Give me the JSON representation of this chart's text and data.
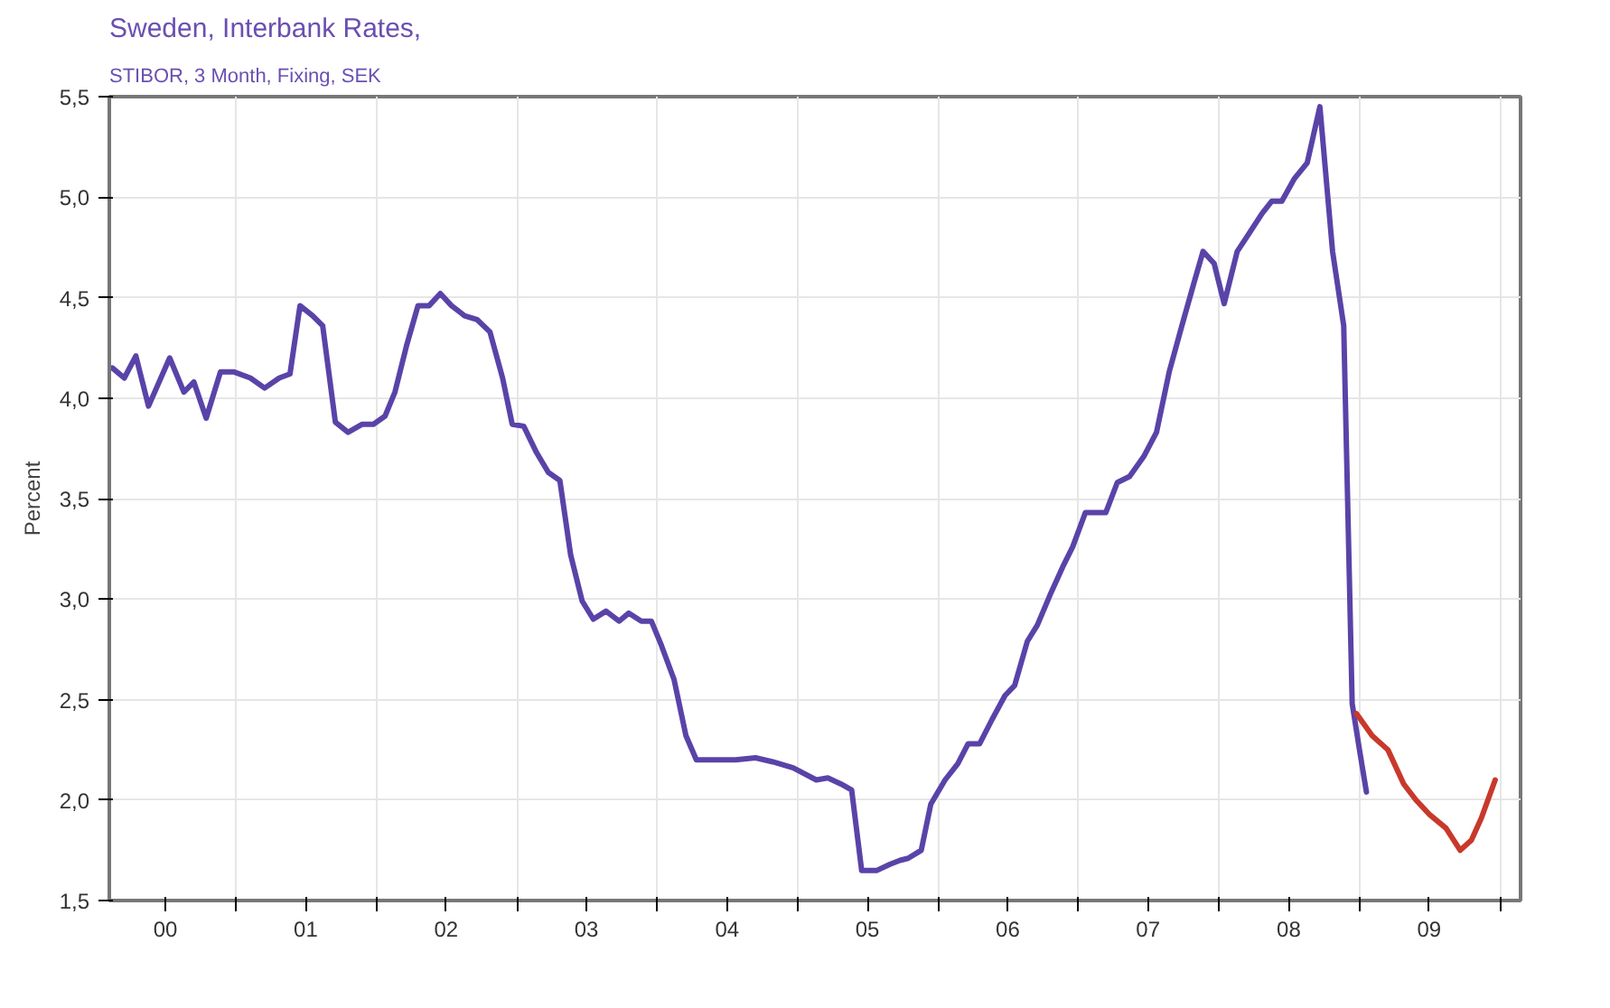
{
  "chart_data": {
    "type": "line",
    "title": "Sweden, Interbank Rates,",
    "subtitle": "STIBOR, 3 Month, Fixing, SEK",
    "ylabel": "Percent",
    "xlim": [
      "2000-02-06",
      "2010-02-24"
    ],
    "ylim": [
      1.5,
      5.5
    ],
    "xticks": [
      {
        "value": "2000-07-01",
        "label": "00"
      },
      {
        "value": "2001-01-01",
        "label": null
      },
      {
        "value": "2001-07-01",
        "label": "01"
      },
      {
        "value": "2002-01-01",
        "label": null
      },
      {
        "value": "2002-07-01",
        "label": "02"
      },
      {
        "value": "2003-01-01",
        "label": null
      },
      {
        "value": "2003-07-01",
        "label": "03"
      },
      {
        "value": "2004-01-01",
        "label": null
      },
      {
        "value": "2004-07-01",
        "label": "04"
      },
      {
        "value": "2005-01-01",
        "label": null
      },
      {
        "value": "2005-07-01",
        "label": "05"
      },
      {
        "value": "2006-01-01",
        "label": null
      },
      {
        "value": "2006-07-01",
        "label": "06"
      },
      {
        "value": "2007-01-01",
        "label": null
      },
      {
        "value": "2007-07-01",
        "label": "07"
      },
      {
        "value": "2008-01-01",
        "label": null
      },
      {
        "value": "2008-07-01",
        "label": "08"
      },
      {
        "value": "2009-01-01",
        "label": null
      },
      {
        "value": "2009-07-01",
        "label": "09"
      },
      {
        "value": "2010-01-01",
        "label": null
      }
    ],
    "yticks": [
      {
        "value": 1.5,
        "label": "1,5"
      },
      {
        "value": 2.0,
        "label": "2,0"
      },
      {
        "value": 2.5,
        "label": "2,5"
      },
      {
        "value": 3.0,
        "label": "3,0"
      },
      {
        "value": 3.5,
        "label": "3,5"
      },
      {
        "value": 4.0,
        "label": "4,0"
      },
      {
        "value": 4.5,
        "label": "4,5"
      },
      {
        "value": 5.0,
        "label": "5,0"
      },
      {
        "value": 5.5,
        "label": "5,5"
      }
    ],
    "grid": true,
    "marker": "none",
    "line_style": "solid",
    "series": [
      {
        "color": "#5a43a8",
        "x": [
          "2000-02-14",
          "2000-03-16",
          "2000-04-15",
          "2000-05-18",
          "2000-07-12",
          "2000-08-18",
          "2000-09-13",
          "2000-10-15",
          "2000-11-21",
          "2000-12-27",
          "2001-02-07",
          "2001-03-16",
          "2001-04-23",
          "2001-05-21",
          "2001-06-16",
          "2001-07-19",
          "2001-08-14",
          "2001-09-16",
          "2001-10-19",
          "2001-11-25",
          "2001-12-24",
          "2002-01-23",
          "2002-02-18",
          "2002-03-20",
          "2002-04-19",
          "2002-05-18",
          "2002-06-16",
          "2002-07-15",
          "2002-08-18",
          "2002-09-20",
          "2002-10-23",
          "2002-11-25",
          "2002-12-20",
          "2003-01-19",
          "2003-02-21",
          "2003-03-24",
          "2003-04-23",
          "2003-05-21",
          "2003-06-20",
          "2003-07-19",
          "2003-08-21",
          "2003-09-24",
          "2003-10-19",
          "2003-11-21",
          "2003-12-17",
          "2004-01-12",
          "2004-02-14",
          "2004-03-16",
          "2004-04-12",
          "2004-06-02",
          "2004-07-23",
          "2004-09-13",
          "2004-10-28",
          "2004-12-20",
          "2005-02-18",
          "2005-03-20",
          "2005-04-23",
          "2005-05-21",
          "2005-06-16",
          "2005-07-26",
          "2005-08-28",
          "2005-09-24",
          "2005-10-15",
          "2005-11-18",
          "2005-12-13",
          "2006-01-19",
          "2006-02-21",
          "2006-03-20",
          "2006-04-19",
          "2006-05-21",
          "2006-06-24",
          "2006-07-19",
          "2006-08-21",
          "2006-09-16",
          "2006-10-19",
          "2006-11-21",
          "2006-12-17",
          "2007-01-19",
          "2007-02-14",
          "2007-03-13",
          "2007-04-12",
          "2007-05-14",
          "2007-06-20",
          "2007-07-23",
          "2007-08-25",
          "2007-09-27",
          "2007-10-28",
          "2007-11-21",
          "2007-12-20",
          "2008-01-15",
          "2008-02-18",
          "2008-03-20",
          "2008-04-23",
          "2008-05-18",
          "2008-06-13",
          "2008-07-15",
          "2008-08-18",
          "2008-09-20",
          "2008-10-23",
          "2008-11-21",
          "2008-12-13",
          "2009-01-01",
          "2009-01-19"
        ],
        "values": [
          4.15,
          4.1,
          4.21,
          3.96,
          4.2,
          4.03,
          4.08,
          3.9,
          4.13,
          4.13,
          4.1,
          4.05,
          4.1,
          4.12,
          4.46,
          4.41,
          4.36,
          3.88,
          3.83,
          3.87,
          3.87,
          3.91,
          4.03,
          4.26,
          4.46,
          4.46,
          4.52,
          4.46,
          4.41,
          4.39,
          4.33,
          4.1,
          3.87,
          3.86,
          3.73,
          3.63,
          3.59,
          3.22,
          2.99,
          2.9,
          2.94,
          2.89,
          2.93,
          2.89,
          2.89,
          2.77,
          2.6,
          2.32,
          2.2,
          2.2,
          2.2,
          2.21,
          2.19,
          2.16,
          2.1,
          2.11,
          2.08,
          2.05,
          1.65,
          1.65,
          1.68,
          1.7,
          1.71,
          1.75,
          1.98,
          2.1,
          2.18,
          2.28,
          2.28,
          2.4,
          2.52,
          2.57,
          2.79,
          2.87,
          3.02,
          3.16,
          3.26,
          3.43,
          3.43,
          3.43,
          3.58,
          3.61,
          3.71,
          3.83,
          4.13,
          4.36,
          4.57,
          4.73,
          4.67,
          4.47,
          4.73,
          4.82,
          4.92,
          4.98,
          4.98,
          5.09,
          5.17,
          5.45,
          4.73,
          4.36,
          2.48,
          2.25,
          2.04
        ]
      },
      {
        "color": "#c8392b",
        "x": [
          "2008-12-24",
          "2009-02-03",
          "2009-03-16",
          "2009-04-26",
          "2009-05-28",
          "2009-07-01",
          "2009-08-14",
          "2009-09-20",
          "2009-10-19",
          "2009-11-14",
          "2009-12-20"
        ],
        "values": [
          2.43,
          2.32,
          2.25,
          2.08,
          2.0,
          1.93,
          1.86,
          1.75,
          1.8,
          1.91,
          2.1
        ]
      }
    ]
  }
}
